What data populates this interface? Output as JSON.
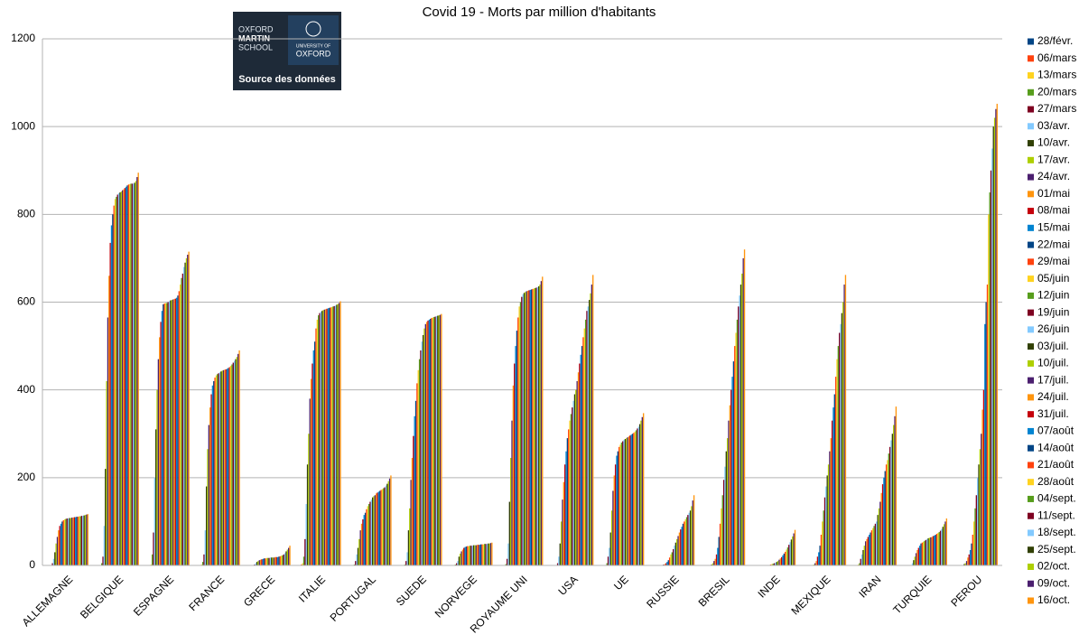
{
  "chart_data": {
    "type": "bar",
    "title": "Covid 19 - Morts par million d'habitants",
    "categories": [
      "ALLEMAGNE",
      "BELGIQUE",
      "ESPAGNE",
      "FRANCE",
      "GRECE",
      "ITALIE",
      "PORTUGAL",
      "SUEDE",
      "NORVEGE",
      "ROYAUME UNI",
      "USA",
      "UE",
      "RUSSIE",
      "BRESIL",
      "INDE",
      "MEXIQUE",
      "IRAN",
      "TURQUIE",
      "PEROU"
    ],
    "ylim": [
      0,
      1200
    ],
    "yticks": [
      0,
      200,
      400,
      600,
      800,
      1000,
      1200
    ],
    "grid": true,
    "legend": "right",
    "series": [
      {
        "name": "28/févr.",
        "color": "#004586",
        "values": [
          0,
          0,
          0,
          0,
          0,
          0,
          0,
          0,
          0,
          0,
          0,
          0,
          0,
          0,
          0,
          0,
          0,
          0,
          0
        ]
      },
      {
        "name": "06/mars",
        "color": "#ff420e",
        "values": [
          0,
          0,
          0,
          0,
          0,
          2,
          0,
          0,
          0,
          0,
          0,
          0,
          0,
          0,
          0,
          0,
          0,
          0,
          0
        ]
      },
      {
        "name": "13/mars",
        "color": "#ffd320",
        "values": [
          0,
          0,
          2,
          2,
          0,
          5,
          0,
          0,
          0,
          0,
          0,
          0,
          0,
          0,
          0,
          0,
          2,
          0,
          0
        ]
      },
      {
        "name": "20/mars",
        "color": "#579d1c",
        "values": [
          1,
          5,
          25,
          8,
          0,
          20,
          2,
          2,
          2,
          3,
          1,
          5,
          0,
          0,
          0,
          0,
          5,
          0,
          0
        ]
      },
      {
        "name": "27/mars",
        "color": "#7e0021",
        "values": [
          5,
          20,
          75,
          25,
          2,
          60,
          10,
          10,
          5,
          15,
          5,
          20,
          0,
          0,
          0,
          0,
          15,
          1,
          0
        ]
      },
      {
        "name": "03/avr.",
        "color": "#83caff",
        "values": [
          15,
          90,
          200,
          80,
          5,
          140,
          25,
          30,
          10,
          50,
          20,
          40,
          0,
          1,
          0,
          0,
          25,
          5,
          1
        ]
      },
      {
        "name": "10/avr.",
        "color": "#314004",
        "values": [
          30,
          220,
          310,
          180,
          8,
          230,
          40,
          80,
          20,
          145,
          50,
          75,
          0,
          2,
          0,
          1,
          35,
          12,
          3
        ]
      },
      {
        "name": "17/avr.",
        "color": "#aecf00",
        "values": [
          50,
          420,
          400,
          265,
          10,
          300,
          60,
          130,
          27,
          245,
          100,
          125,
          1,
          5,
          0,
          2,
          45,
          20,
          5
        ]
      },
      {
        "name": "24/avr.",
        "color": "#4b1f6f",
        "values": [
          65,
          565,
          470,
          320,
          12,
          380,
          80,
          195,
          32,
          330,
          150,
          170,
          2,
          10,
          0,
          5,
          55,
          28,
          10
        ]
      },
      {
        "name": "01/mai",
        "color": "#ff950e",
        "values": [
          80,
          660,
          520,
          360,
          13,
          425,
          95,
          245,
          36,
          410,
          190,
          205,
          3,
          15,
          0,
          10,
          60,
          35,
          18
        ]
      },
      {
        "name": "08/mai",
        "color": "#c5000b",
        "values": [
          90,
          735,
          555,
          390,
          14,
          460,
          105,
          295,
          40,
          460,
          230,
          230,
          5,
          25,
          0,
          20,
          65,
          40,
          25
        ]
      },
      {
        "name": "15/mai",
        "color": "#0084d1",
        "values": [
          95,
          775,
          580,
          410,
          15,
          490,
          115,
          340,
          42,
          500,
          260,
          250,
          8,
          40,
          1,
          30,
          70,
          45,
          35
        ]
      },
      {
        "name": "22/mai",
        "color": "#004586",
        "values": [
          100,
          800,
          595,
          420,
          16,
          510,
          120,
          375,
          43,
          535,
          290,
          260,
          12,
          65,
          1,
          45,
          75,
          50,
          50
        ]
      },
      {
        "name": "29/mai",
        "color": "#ff420e",
        "values": [
          103,
          820,
          597,
          428,
          16,
          540,
          128,
          415,
          44,
          565,
          310,
          270,
          18,
          95,
          2,
          70,
          80,
          52,
          70
        ]
      },
      {
        "name": "05/juin",
        "color": "#ffd320",
        "values": [
          105,
          835,
          598,
          433,
          17,
          560,
          135,
          445,
          44,
          590,
          330,
          275,
          25,
          130,
          3,
          100,
          85,
          54,
          100
        ]
      },
      {
        "name": "12/juin",
        "color": "#579d1c",
        "values": [
          106,
          840,
          598,
          436,
          17,
          570,
          140,
          470,
          45,
          600,
          345,
          280,
          30,
          160,
          4,
          125,
          90,
          56,
          130
        ]
      },
      {
        "name": "19/juin",
        "color": "#7e0021",
        "values": [
          107,
          845,
          600,
          438,
          17,
          575,
          145,
          490,
          45,
          612,
          360,
          283,
          37,
          195,
          5,
          155,
          95,
          58,
          160
        ]
      },
      {
        "name": "26/juin",
        "color": "#83caff",
        "values": [
          107,
          848,
          602,
          440,
          18,
          578,
          150,
          510,
          45,
          618,
          375,
          286,
          45,
          225,
          6,
          180,
          100,
          60,
          200
        ]
      },
      {
        "name": "03/juil.",
        "color": "#314004",
        "values": [
          108,
          850,
          604,
          442,
          18,
          580,
          155,
          525,
          46,
          621,
          390,
          288,
          52,
          260,
          8,
          205,
          115,
          62,
          230
        ]
      },
      {
        "name": "10/juil.",
        "color": "#aecf00",
        "values": [
          108,
          852,
          605,
          444,
          18,
          582,
          158,
          540,
          46,
          623,
          400,
          290,
          60,
          290,
          10,
          230,
          130,
          63,
          265
        ]
      },
      {
        "name": "17/juil.",
        "color": "#4b1f6f",
        "values": [
          109,
          855,
          606,
          445,
          18,
          583,
          160,
          550,
          46,
          625,
          420,
          292,
          67,
          330,
          13,
          260,
          145,
          64,
          300
        ]
      },
      {
        "name": "24/juil.",
        "color": "#ff950e",
        "values": [
          109,
          857,
          607,
          446,
          19,
          584,
          164,
          555,
          47,
          626,
          440,
          294,
          75,
          365,
          16,
          290,
          165,
          65,
          355
        ]
      },
      {
        "name": "31/juil.",
        "color": "#c5000b",
        "values": [
          110,
          860,
          608,
          447,
          19,
          585,
          166,
          558,
          47,
          627,
          460,
          296,
          82,
          400,
          19,
          330,
          185,
          67,
          400
        ]
      },
      {
        "name": "07/août",
        "color": "#0084d1",
        "values": [
          110,
          863,
          610,
          448,
          19,
          586,
          168,
          560,
          47,
          628,
          480,
          298,
          88,
          430,
          23,
          360,
          200,
          68,
          550
        ]
      },
      {
        "name": "14/août",
        "color": "#004586",
        "values": [
          111,
          866,
          615,
          450,
          20,
          587,
          170,
          562,
          48,
          629,
          500,
          300,
          95,
          465,
          27,
          390,
          215,
          70,
          600
        ]
      },
      {
        "name": "21/août",
        "color": "#ff420e",
        "values": [
          111,
          868,
          625,
          452,
          21,
          588,
          172,
          564,
          48,
          630,
          520,
          302,
          100,
          500,
          31,
          430,
          230,
          72,
          640
        ]
      },
      {
        "name": "28/août",
        "color": "#ffd320",
        "values": [
          112,
          869,
          640,
          455,
          22,
          589,
          174,
          565,
          48,
          631,
          540,
          305,
          105,
          530,
          36,
          470,
          240,
          74,
          800
        ]
      },
      {
        "name": "04/sept.",
        "color": "#579d1c",
        "values": [
          112,
          870,
          655,
          458,
          23,
          590,
          176,
          566,
          49,
          632,
          560,
          308,
          110,
          560,
          41,
          500,
          255,
          76,
          850
        ]
      },
      {
        "name": "11/sept.",
        "color": "#7e0021",
        "values": [
          113,
          870,
          665,
          462,
          25,
          591,
          178,
          567,
          49,
          633,
          580,
          312,
          115,
          590,
          47,
          530,
          270,
          79,
          900
        ]
      },
      {
        "name": "18/sept.",
        "color": "#83caff",
        "values": [
          113,
          870,
          680,
          466,
          28,
          592,
          182,
          568,
          49,
          634,
          590,
          316,
          120,
          615,
          53,
          550,
          285,
          83,
          950
        ]
      },
      {
        "name": "25/sept.",
        "color": "#314004",
        "values": [
          114,
          872,
          690,
          470,
          32,
          594,
          186,
          569,
          50,
          636,
          605,
          322,
          125,
          640,
          59,
          575,
          300,
          88,
          1000
        ]
      },
      {
        "name": "02/oct.",
        "color": "#aecf00",
        "values": [
          115,
          876,
          700,
          475,
          36,
          596,
          192,
          570,
          50,
          640,
          620,
          330,
          135,
          665,
          66,
          600,
          320,
          94,
          1020
        ]
      },
      {
        "name": "09/oct.",
        "color": "#4b1f6f",
        "values": [
          116,
          885,
          708,
          482,
          40,
          598,
          198,
          571,
          51,
          648,
          640,
          338,
          148,
          700,
          73,
          640,
          340,
          100,
          1040
        ]
      },
      {
        "name": "16/oct.",
        "color": "#ff950e",
        "values": [
          117,
          895,
          715,
          490,
          45,
          602,
          205,
          573,
          52,
          658,
          662,
          347,
          160,
          720,
          81,
          662,
          362,
          107,
          1052
        ]
      }
    ]
  },
  "logo": {
    "left": [
      "OXFORD",
      "MARTIN",
      "SCHOOL"
    ],
    "right": [
      "UNIVERSITY OF",
      "OXFORD"
    ],
    "caption": "Source des données"
  }
}
